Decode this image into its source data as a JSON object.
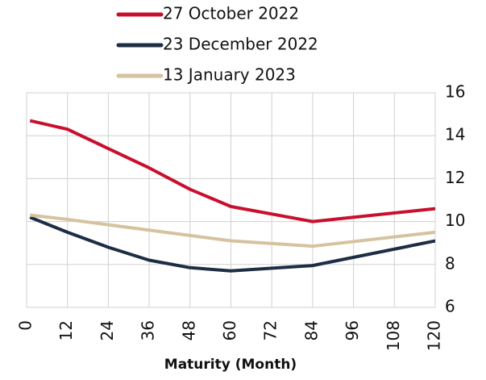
{
  "chart_data": {
    "type": "line",
    "x": [
      1,
      12,
      24,
      36,
      48,
      60,
      84,
      120
    ],
    "series": [
      {
        "name": "27 October 2022",
        "color": "#c8102e",
        "values": [
          14.7,
          14.3,
          13.4,
          12.5,
          11.5,
          10.7,
          10.0,
          10.6
        ]
      },
      {
        "name": "23 December 2022",
        "color": "#1d2d44",
        "values": [
          10.2,
          9.5,
          8.8,
          8.2,
          7.85,
          7.7,
          7.95,
          9.1
        ]
      },
      {
        "name": "13 January 2023",
        "color": "#d5c29f",
        "values": [
          10.3,
          10.1,
          9.85,
          9.6,
          9.35,
          9.1,
          8.85,
          9.5
        ]
      }
    ],
    "xlabel": "Maturity (Month)",
    "xlim": [
      0,
      120
    ],
    "xticks": [
      0,
      12,
      24,
      36,
      48,
      60,
      72,
      84,
      96,
      108,
      120
    ],
    "ylim": [
      6,
      16
    ],
    "yticks": [
      6,
      8,
      10,
      12,
      14,
      16
    ],
    "grid": true,
    "legend": "top"
  }
}
